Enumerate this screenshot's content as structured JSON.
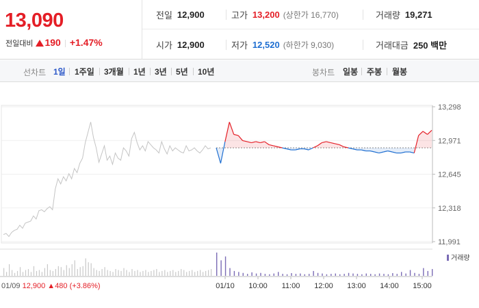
{
  "price": {
    "current": "13,090",
    "change_label": "전일대비",
    "change": "190",
    "change_pct": "+1.47%"
  },
  "stats": {
    "prev_label": "전일",
    "prev": "12,900",
    "high_label": "고가",
    "high": "13,200",
    "lower_bound_label": "(상한가 16,770)",
    "volume_label": "거래량",
    "volume": "19,271",
    "open_label": "시가",
    "open": "12,900",
    "low_label": "저가",
    "low": "12,520",
    "lower_limit_label": "(하한가 9,030)",
    "amount_label": "거래대금",
    "amount": "250 백만"
  },
  "toolbar": {
    "line_title": "선차트",
    "line_items": [
      "1일",
      "1주일",
      "3개월",
      "1년",
      "3년",
      "5년",
      "10년"
    ],
    "active": "1일",
    "candle_title": "봉차트",
    "candle_items": [
      "일봉",
      "주봉",
      "월봉"
    ]
  },
  "colors": {
    "up": "#e41e26",
    "down": "#1f6fd1",
    "prev_day": "#c4c4c4",
    "volume_today": "#7a6bb5",
    "volume_prev": "#c8c8c8"
  },
  "chart_data": {
    "type": "line",
    "reference_price": 12900,
    "ylim": [
      11991,
      13298
    ],
    "y_ticks": [
      "13,298",
      "12,971",
      "12,645",
      "12,318",
      "11,991"
    ],
    "x_ticks": [
      "01/10",
      "10:00",
      "11:00",
      "12:00",
      "13:00",
      "14:00",
      "15:00"
    ],
    "prev_day_label": "01/09",
    "prev_day_close": "12,900",
    "prev_day_change": "480",
    "prev_day_change_pct": "(+3.86%)",
    "volume_legend": "거래량",
    "series": [
      {
        "session": "01/09",
        "values": [
          12060,
          12070,
          12040,
          12080,
          12100,
          12110,
          12150,
          12120,
          12170,
          12180,
          12190,
          12240,
          12210,
          12290,
          12300,
          12280,
          12310,
          12330,
          12300,
          12500,
          12600,
          12550,
          12620,
          12580,
          12650,
          12600,
          12700,
          12660,
          12750,
          12800,
          12950,
          13050,
          13150,
          13000,
          12900,
          12760,
          12840,
          12920,
          12780,
          12820,
          12740,
          12850,
          12800,
          12780,
          12900,
          12870,
          12820,
          12990,
          13050,
          12950,
          12880,
          12920,
          12870,
          12960,
          12930,
          12900,
          12880,
          12850,
          12960,
          12890,
          12840,
          12920,
          12870,
          12900,
          12880,
          12860,
          12850,
          12920,
          12870,
          12880,
          12900,
          12870,
          12850,
          12880,
          12920,
          12890,
          12900
        ]
      },
      {
        "session": "01/10",
        "values": [
          12900,
          12750,
          12960,
          13150,
          13030,
          13020,
          12970,
          12960,
          12950,
          12960,
          12950,
          12960,
          12930,
          12920,
          12910,
          12900,
          12890,
          12880,
          12880,
          12890,
          12890,
          12880,
          12900,
          12920,
          12950,
          12960,
          12950,
          12940,
          12930,
          12910,
          12900,
          12890,
          12880,
          12880,
          12870,
          12870,
          12860,
          12850,
          12860,
          12870,
          12860,
          12850,
          12850,
          12860,
          12860,
          12850,
          13020,
          13060,
          13030,
          13070
        ]
      }
    ],
    "volume": {
      "prev": [
        40,
        20,
        60,
        30,
        15,
        25,
        45,
        20,
        30,
        35,
        20,
        50,
        25,
        30,
        20,
        40,
        60,
        30,
        25,
        35,
        50,
        45,
        30,
        55,
        40,
        60,
        80,
        35,
        45,
        50,
        90,
        70,
        65,
        40,
        30,
        25,
        35,
        45,
        30,
        25,
        20,
        35,
        30,
        25,
        40,
        30,
        20,
        35,
        25,
        30,
        20,
        25,
        30,
        20,
        25,
        30,
        35,
        20,
        25,
        30,
        20,
        25,
        30,
        20,
        25,
        35,
        30,
        20,
        25,
        30,
        20,
        25,
        30,
        20,
        25,
        30,
        35
      ],
      "today": [
        120,
        80,
        100,
        40,
        25,
        20,
        15,
        10,
        18,
        12,
        15,
        10,
        8,
        12,
        20,
        10,
        8,
        14,
        10,
        12,
        8,
        10,
        25,
        15,
        12,
        8,
        10,
        12,
        8,
        10,
        15,
        12,
        10,
        8,
        12,
        10,
        8,
        12,
        10,
        8,
        14,
        10,
        20,
        12,
        30,
        15,
        10,
        40,
        25,
        35
      ]
    }
  }
}
